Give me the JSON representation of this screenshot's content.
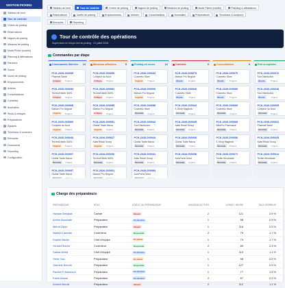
{
  "sidebar": {
    "title": "GESTION PICKING",
    "active": 1,
    "items": [
      "Tableau de bord",
      "Tour de contrôle",
      "Ordres de picking",
      "Réservations",
      "Vagues de picking",
      "Missions de picking",
      "Mode Picker (mobile)",
      "Planning & affectations",
      "Parcours",
      "Zones",
      "Zones de picking",
      "Emplacements",
      "Articles",
      "Consolidations",
      "Contrôles",
      "Anomalies",
      "Stock & charges",
      "Préparateurs",
      "Équipes",
      "Terminaux & scanners",
      "Entrepôts",
      "Documents",
      "Reporting",
      "Configuration"
    ]
  },
  "tabs": {
    "active": [
      0,
      1
    ],
    "rows": [
      [
        "Tableau de bord",
        "Tour de contrôle",
        "Ordres de picking",
        "Vagues de picking",
        "Missions de picking",
        "Mode Picker (mobile)",
        "Planning & affectations"
      ],
      [
        "Réservations",
        "Zones de picking",
        "Emplacements",
        "Articles",
        "Consolidations",
        "Anomalies",
        "Préparateurs",
        "Terminaux & scanners"
      ],
      [
        "Entrepôts",
        "Reporting"
      ]
    ]
  },
  "hero": {
    "title": "Tour de contrôle des opérations",
    "subtitle": "Supervision en temps réel du picking · 21 juillet 2026"
  },
  "priority_styles": {
    "Critique": [
      "#fee2e2",
      "#b91c1c"
    ],
    "Urgente": [
      "#ffedd5",
      "#c2410c"
    ],
    "Normale": [
      "#e2e8f0",
      "#334155"
    ],
    "Élevée": [
      "#dbeafe",
      "#1d4ed8"
    ]
  },
  "kanban": {
    "title": "Commandes par étape",
    "columns": [
      {
        "title": "Commandes libérées",
        "count": 14,
        "color": "#2563eb",
        "cards": [
          {
            "id": "PCK-2026-000099",
            "client": "Pharmal Santé",
            "priority": "Critique",
            "meta": "6 lignes"
          },
          {
            "id": "PCK-2026-000094",
            "client": "TechnoDistrib SARL",
            "priority": "Critique",
            "meta": "4 lignes"
          },
          {
            "id": "PCK-2026-000068",
            "client": "Maison Pro Négoce",
            "priority": "Urgente",
            "meta": "8 lignes"
          },
          {
            "id": "PCK-2026-000060",
            "client": "Comptoir du Nord",
            "priority": "Urgente",
            "meta": "3 lignes"
          },
          {
            "id": "PCK-2026-000043",
            "client": "TechnoDistrib SARL",
            "priority": "Urgente",
            "meta": "5 lignes"
          },
          {
            "id": "PCK-2026-000007",
            "client": "Global Trade Maroc",
            "priority": "Normale",
            "meta": "7 lignes"
          },
          {
            "id": "PCK-2026-000097",
            "client": "Global Trade Maroc",
            "priority": "Normale",
            "meta": "2 lignes"
          }
        ]
      },
      {
        "title": "Missions affectées",
        "count": 8,
        "color": "#ea580c",
        "cards": [
          {
            "id": "PCK-2026-000059",
            "client": "Comptoir du Nord",
            "priority": "Critique",
            "meta": "5 lignes"
          },
          {
            "id": "PCK-2026-000081",
            "client": "TechnoDistrib SARL",
            "priority": "Critique",
            "meta": "6 lignes"
          },
          {
            "id": "PCK-2026-000085",
            "client": "Maison Pro Négoce",
            "priority": "Critique",
            "meta": "4 lignes"
          },
          {
            "id": "PCK-2026-000051",
            "client": "Global Trade Maroc",
            "priority": "Urgente",
            "meta": "9 lignes"
          },
          {
            "id": "PCK-2026-000027",
            "client": "Atlas Retail Group",
            "priority": "Urgente",
            "meta": "3 lignes"
          },
          {
            "id": "PCK-2026-000030",
            "client": "TechnoDistrib SARL",
            "priority": "Normale",
            "meta": "6 lignes"
          },
          {
            "id": "PCK-2026-000061",
            "client": "Maison Pro Négoce",
            "priority": "Normale",
            "meta": "2 lignes"
          }
        ]
      },
      {
        "title": "Picking en cours",
        "count": 12,
        "color": "#0891b2",
        "cards": [
          {
            "id": "PCK-2026-000034",
            "client": "Cosmétic Store",
            "priority": "Urgente",
            "meta": "7 lignes"
          },
          {
            "id": "PCK-2026-000006",
            "client": "Maison Pro Négoce",
            "priority": "Urgente",
            "meta": "5 lignes"
          },
          {
            "id": "PCK-2026-000058",
            "client": "Cosmétic Store",
            "priority": "Normale",
            "meta": "4 lignes"
          },
          {
            "id": "PCK-2026-000042",
            "client": "Sud Distribution",
            "priority": "Normale",
            "meta": "6 lignes"
          },
          {
            "id": "PCK-2026-000044",
            "client": "Global Trade Maroc",
            "priority": "Normale",
            "meta": "3 lignes"
          },
          {
            "id": "PCK-2026-000041",
            "client": "Atlas Retail Group",
            "priority": "Normale",
            "meta": "8 lignes"
          },
          {
            "id": "PCK-2026-000084",
            "client": "AutoParts Direct",
            "priority": "Normale",
            "meta": "2 lignes"
          }
        ]
      },
      {
        "title": "Contrôle",
        "count": 8,
        "color": "#dc2626",
        "cards": [
          {
            "id": "PCK-2026-000075",
            "client": "Maison Pro Négoce",
            "priority": "Élevée",
            "meta": "6 lignes"
          },
          {
            "id": "PCK-2026-000040",
            "client": "Cosmétic Store",
            "priority": "Élevée",
            "meta": "4 lignes"
          },
          {
            "id": "PCK-2026-000042",
            "client": "E-Shop Maghreb",
            "priority": "Normale",
            "meta": "5 lignes"
          },
          {
            "id": "PCK-2026-000045",
            "client": "Atlas Retail Group",
            "priority": "Normale",
            "meta": "3 lignes"
          },
          {
            "id": "PCK-2026-000008",
            "client": "Global Trade Maroc",
            "priority": "Normale",
            "meta": "7 lignes"
          },
          {
            "id": "PCK-2026-000036",
            "client": "AutoParts Direct",
            "priority": "Normale",
            "meta": "2 lignes"
          }
        ]
      },
      {
        "title": "Consolidation",
        "count": 8,
        "color": "#d97706",
        "cards": [
          {
            "id": "PCK-2026-000070",
            "client": "Cosmétic Store",
            "priority": "Élevée",
            "meta": "5 lignes"
          },
          {
            "id": "PCK-2026-000066",
            "client": "Cosmétic Store",
            "priority": "Élevée",
            "meta": "6 lignes"
          },
          {
            "id": "PCK-2026-000009",
            "client": "Cosmétic Store",
            "priority": "Normale",
            "meta": "4 lignes"
          },
          {
            "id": "PCK-2026-000068",
            "client": "BiboPro Pharmacie",
            "priority": "Normale",
            "meta": "3 lignes"
          },
          {
            "id": "PCK-2026-000056",
            "client": "E-Shop Maghreb",
            "priority": "Normale",
            "meta": "8 lignes"
          },
          {
            "id": "PCK-2026-000071",
            "client": "Textile Wholesale",
            "priority": "Normale",
            "meta": "2 lignes"
          }
        ]
      },
      {
        "title": "Prêt à expédier",
        "count": 9,
        "color": "#16a34a",
        "cards": [
          {
            "id": "PCK-2026-000072",
            "client": "Sud Distribution",
            "priority": "Élevée",
            "meta": "5 lignes"
          },
          {
            "id": "PCK-2026-000048",
            "client": "Sud Distribution",
            "priority": "Élevée",
            "meta": "4 lignes"
          },
          {
            "id": "PCK-2026-000039",
            "client": "Comptoir du Nord",
            "priority": "Normale",
            "meta": "6 lignes"
          },
          {
            "id": "PCK-2026-000031",
            "client": "Pharmal Santé",
            "priority": "Normale",
            "meta": "3 lignes"
          },
          {
            "id": "PCK-2026-000025",
            "client": "Atlas Retail Group",
            "priority": "Normale",
            "meta": "7 lignes"
          },
          {
            "id": "PCK-2026-000014",
            "client": "Textile Wholesale",
            "priority": "Normale",
            "meta": "2 lignes"
          }
        ]
      }
    ]
  },
  "status_styles": {
    "Absent": [
      "#fee2e2",
      "#b91c1c"
    ],
    "En mission": [
      "#dbeafe",
      "#1d4ed8"
    ],
    "Disponible": [
      "#dcfce7",
      "#15803d"
    ],
    "En pause": [
      "#ffedd5",
      "#c2410c"
    ]
  },
  "workload": {
    "title": "Charge des préparateurs",
    "headers": [
      "PRÉPARATEUR",
      "RÔLE",
      "STATUT DU PRÉPARATEUR",
      "MISSIONS ACTIVES",
      "LIGNES / HEURE",
      "TAUX D'ERREUR"
    ],
    "rows": [
      [
        "Hicham Benaida",
        "Cariste",
        "Absent",
        "2",
        "121",
        "2.9 %"
      ],
      [
        "Amine Bouchaib",
        "Préparateur",
        "En mission",
        "1",
        "98",
        "2.9 %"
      ],
      [
        "Mehdi Zahiri",
        "Préparateur",
        "Absent",
        "1",
        "116",
        "2.9 %"
      ],
      [
        "Nadia El Amrani",
        "Contrôleur",
        "Disponible",
        "2",
        "79",
        "1.7 %"
      ],
      [
        "Sophie Martin",
        "Chef d'équipe",
        "En pause",
        "1",
        "73",
        "1.7 %"
      ],
      [
        "Youssef Karim",
        "Contrôleur",
        "Disponible",
        "2",
        "89",
        "2.3 %"
      ],
      [
        "Salma Idrissi",
        "Chef d'équipe",
        "En mission",
        "1",
        "110",
        "1.1 %"
      ],
      [
        "Omar Tazi",
        "Préparateur",
        "En pause",
        "1",
        "98",
        "2.9 %"
      ],
      [
        "Yasmine Bennis",
        "Préparateur",
        "Disponible",
        "1",
        "127",
        "2.9 %"
      ],
      [
        "Rachid El Mansouri",
        "Préparateur",
        "En mission",
        "1",
        "77",
        "1.6 %"
      ],
      [
        "Karim Alaoui",
        "Préparateur",
        "En mission",
        "2",
        "87",
        "2.2 %"
      ],
      [
        "Ahmed Benali",
        "Préparateur",
        "Absent",
        "2",
        "112",
        "1.1 %"
      ]
    ]
  }
}
